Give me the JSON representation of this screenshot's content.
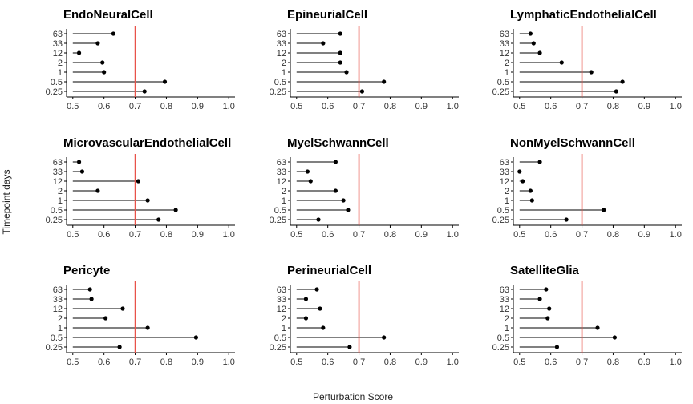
{
  "chart_data": {
    "type": "lollipop",
    "xlabel": "Perturbation Score",
    "ylabel": "Timepoint days",
    "xlim": [
      0.48,
      1.02
    ],
    "x_ticks": [
      0.5,
      0.6,
      0.7,
      0.8,
      0.9,
      1.0
    ],
    "x_tick_labels": [
      "0.5",
      "0.6",
      "0.7",
      "0.8",
      "0.9",
      "1.0"
    ],
    "baseline": 0.5,
    "reference_line": {
      "value": 0.7,
      "color": "#e8534a"
    },
    "categories": [
      "63",
      "33",
      "12",
      "2",
      "1",
      "0.5",
      "0.25"
    ],
    "grid": false,
    "panels": [
      {
        "title": "EndoNeuralCell",
        "values": [
          0.63,
          0.58,
          0.52,
          0.595,
          0.6,
          0.795,
          0.73
        ]
      },
      {
        "title": "EpineurialCell",
        "values": [
          0.64,
          0.585,
          0.64,
          0.64,
          0.66,
          0.78,
          0.71
        ]
      },
      {
        "title": "LymphaticEndothelialCell",
        "values": [
          0.535,
          0.545,
          0.565,
          0.635,
          0.73,
          0.83,
          0.81
        ]
      },
      {
        "title": "MicrovascularEndothelialCell",
        "values": [
          0.52,
          0.53,
          0.71,
          0.58,
          0.74,
          0.83,
          0.775
        ]
      },
      {
        "title": "MyelSchwannCell",
        "values": [
          0.625,
          0.535,
          0.545,
          0.625,
          0.65,
          0.665,
          0.57
        ]
      },
      {
        "title": "NonMyelSchwannCell",
        "values": [
          0.565,
          0.5,
          0.51,
          0.535,
          0.54,
          0.77,
          0.65
        ]
      },
      {
        "title": "Pericyte",
        "values": [
          0.555,
          0.56,
          0.66,
          0.605,
          0.74,
          0.895,
          0.65
        ]
      },
      {
        "title": "PerineurialCell",
        "values": [
          0.565,
          0.53,
          0.575,
          0.53,
          0.585,
          0.78,
          0.67
        ]
      },
      {
        "title": "SatelliteGlia",
        "values": [
          0.585,
          0.565,
          0.595,
          0.59,
          0.75,
          0.805,
          0.62
        ]
      }
    ]
  }
}
